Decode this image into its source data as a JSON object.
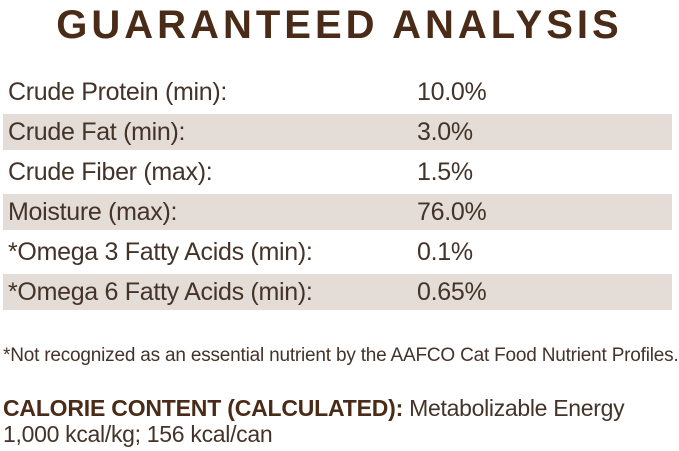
{
  "title": "GUARANTEED ANALYSIS",
  "table": {
    "rows": [
      {
        "label": "Crude Protein (min):",
        "value": "10.0%"
      },
      {
        "label": "Crude Fat (min):",
        "value": "3.0%"
      },
      {
        "label": "Crude Fiber (max):",
        "value": "1.5%"
      },
      {
        "label": "Moisture (max):",
        "value": "76.0%"
      },
      {
        "label": "*Omega 3 Fatty Acids (min):",
        "value": "0.1%"
      },
      {
        "label": "*Omega 6 Fatty Acids (min):",
        "value": "0.65%"
      }
    ]
  },
  "footnote": "*Not recognized as an essential nutrient by the AAFCO Cat Food Nutrient Profiles.",
  "calorie": {
    "heading": "CALORIE CONTENT (CALCULATED):",
    "subheading": "Metabolizable Energy",
    "values": "1,000 kcal/kg; 156 kcal/can"
  },
  "colors": {
    "title_brown": "#4a2b17",
    "body_brown": "#443329",
    "stripe_beige": "#e4dcd6"
  }
}
